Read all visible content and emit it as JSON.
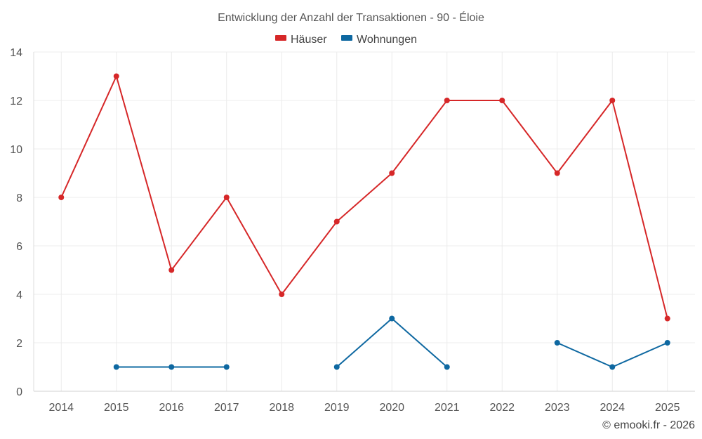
{
  "chart_data": {
    "type": "line",
    "title": "Entwicklung der Anzahl der Transaktionen - 90 - Éloie",
    "categories": [
      "2014",
      "2015",
      "2016",
      "2017",
      "2018",
      "2019",
      "2020",
      "2021",
      "2022",
      "2023",
      "2024",
      "2025"
    ],
    "ylim": [
      0,
      14
    ],
    "yticks": [
      0,
      2,
      4,
      6,
      8,
      10,
      12,
      14
    ],
    "grid": true,
    "legend_position": "top-center",
    "series": [
      {
        "name": "Häuser",
        "color": "#d62728",
        "values": [
          8,
          13,
          5,
          8,
          4,
          7,
          9,
          12,
          12,
          9,
          12,
          3
        ]
      },
      {
        "name": "Wohnungen",
        "color": "#0e68a1",
        "values": [
          null,
          1,
          1,
          1,
          null,
          1,
          3,
          1,
          null,
          2,
          1,
          2
        ]
      }
    ],
    "credit": "© emooki.fr - 2026"
  }
}
